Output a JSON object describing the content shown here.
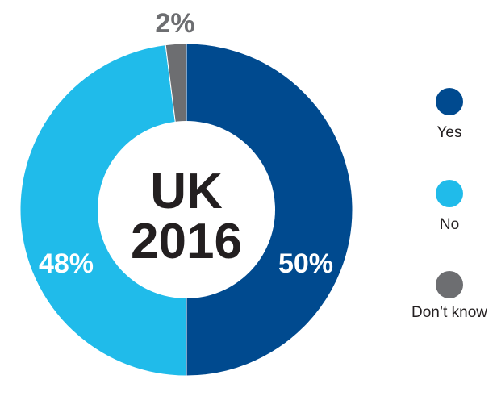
{
  "chart_data": {
    "type": "pie",
    "center_label": [
      "UK",
      "2016"
    ],
    "categories": [
      "Yes",
      "No",
      "Don’t know"
    ],
    "values": [
      50,
      48,
      2
    ],
    "value_labels": [
      "50%",
      "48%",
      "2%"
    ],
    "colors": [
      "#004a8f",
      "#20bbea",
      "#6d6e71"
    ],
    "legend": {
      "placement": "right",
      "items": [
        {
          "label": "Yes",
          "color": "#004a8f"
        },
        {
          "label": "No",
          "color": "#20bbea"
        },
        {
          "label": "Don’t know",
          "color": "#6d6e71"
        }
      ]
    }
  }
}
